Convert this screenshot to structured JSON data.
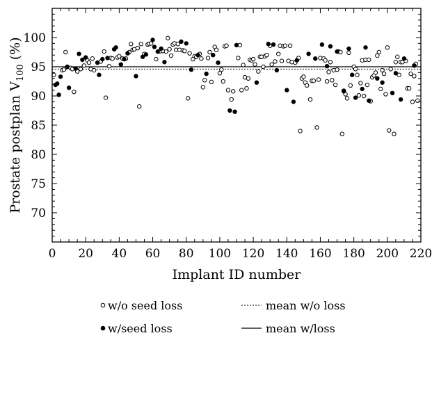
{
  "chart_data": {
    "type": "scatter",
    "xlabel": "Implant ID number",
    "ylabel": "Prostate postplan V",
    "ylabel_subscript": "100",
    "ylabel_suffix": " (%)",
    "xlim": [
      0,
      220
    ],
    "ylim": [
      65,
      105
    ],
    "xticks": [
      0,
      20,
      40,
      60,
      80,
      100,
      120,
      140,
      160,
      180,
      200,
      220
    ],
    "yticks": [
      70,
      75,
      80,
      85,
      90,
      95,
      100
    ],
    "grid": false,
    "legend_position": "bottom",
    "series": [
      {
        "name": "w/o seed loss",
        "marker": "open-circle",
        "points": [
          [
            1,
            93.6
          ],
          [
            6,
            94.4
          ],
          [
            7,
            94.5
          ],
          [
            8,
            97.5
          ],
          [
            11,
            94.8
          ],
          [
            12,
            94.6
          ],
          [
            13,
            90.7
          ],
          [
            15,
            94.2
          ],
          [
            17,
            94.6
          ],
          [
            19,
            95.2
          ],
          [
            21,
            96.1
          ],
          [
            22,
            95.7
          ],
          [
            23,
            94.6
          ],
          [
            24,
            96.4
          ],
          [
            25,
            94.4
          ],
          [
            29,
            95.9
          ],
          [
            31,
            97.6
          ],
          [
            32,
            89.7
          ],
          [
            34,
            95.1
          ],
          [
            35,
            96.5
          ],
          [
            36,
            96.4
          ],
          [
            39,
            96.6
          ],
          [
            40,
            96.8
          ],
          [
            42,
            96.4
          ],
          [
            44,
            96.4
          ],
          [
            46,
            97.5
          ],
          [
            47,
            98.9
          ],
          [
            48,
            97.9
          ],
          [
            49,
            98.0
          ],
          [
            51,
            98.2
          ],
          [
            52,
            88.2
          ],
          [
            53,
            98.9
          ],
          [
            55,
            97.2
          ],
          [
            57,
            98.8
          ],
          [
            58,
            98.9
          ],
          [
            59,
            99.0
          ],
          [
            62,
            96.3
          ],
          [
            64,
            97.6
          ],
          [
            66,
            97.7
          ],
          [
            68,
            97.6
          ],
          [
            69,
            99.9
          ],
          [
            70,
            98.0
          ],
          [
            71,
            96.9
          ],
          [
            72,
            98.8
          ],
          [
            73,
            99.0
          ],
          [
            74,
            97.9
          ],
          [
            75,
            98.9
          ],
          [
            76,
            97.9
          ],
          [
            78,
            97.8
          ],
          [
            79,
            97.7
          ],
          [
            81,
            89.6
          ],
          [
            82,
            97.3
          ],
          [
            84,
            96.3
          ],
          [
            85,
            96.8
          ],
          [
            86,
            96.7
          ],
          [
            88,
            97.2
          ],
          [
            89,
            96.4
          ],
          [
            90,
            91.5
          ],
          [
            91,
            92.7
          ],
          [
            93,
            96.5
          ],
          [
            94,
            97.5
          ],
          [
            95,
            92.4
          ],
          [
            97,
            98.4
          ],
          [
            98,
            97.9
          ],
          [
            100,
            93.9
          ],
          [
            101,
            94.5
          ],
          [
            102,
            92.5
          ],
          [
            103,
            98.5
          ],
          [
            104,
            98.6
          ],
          [
            105,
            91.0
          ],
          [
            107,
            89.4
          ],
          [
            108,
            90.8
          ],
          [
            111,
            96.5
          ],
          [
            112,
            98.7
          ],
          [
            113,
            91.0
          ],
          [
            114,
            95.3
          ],
          [
            115,
            93.2
          ],
          [
            116,
            91.3
          ],
          [
            117,
            93.0
          ],
          [
            118,
            96.2
          ],
          [
            119,
            96.1
          ],
          [
            120,
            96.3
          ],
          [
            121,
            95.4
          ],
          [
            123,
            94.2
          ],
          [
            124,
            96.7
          ],
          [
            125,
            96.7
          ],
          [
            126,
            95.0
          ],
          [
            127,
            96.8
          ],
          [
            128,
            97.0
          ],
          [
            130,
            98.6
          ],
          [
            131,
            95.4
          ],
          [
            133,
            95.9
          ],
          [
            135,
            97.2
          ],
          [
            136,
            98.6
          ],
          [
            137,
            96.0
          ],
          [
            138,
            98.5
          ],
          [
            139,
            98.6
          ],
          [
            141,
            96.0
          ],
          [
            142,
            98.6
          ],
          [
            143,
            95.8
          ],
          [
            145,
            95.7
          ],
          [
            147,
            96.5
          ],
          [
            148,
            84.0
          ],
          [
            149,
            93.0
          ],
          [
            150,
            93.3
          ],
          [
            151,
            92.3
          ],
          [
            152,
            91.8
          ],
          [
            154,
            89.4
          ],
          [
            155,
            92.6
          ],
          [
            156,
            92.6
          ],
          [
            158,
            84.6
          ],
          [
            159,
            92.8
          ],
          [
            160,
            96.5
          ],
          [
            162,
            96.4
          ],
          [
            163,
            96.1
          ],
          [
            164,
            92.5
          ],
          [
            165,
            94.1
          ],
          [
            166,
            95.8
          ],
          [
            167,
            92.7
          ],
          [
            168,
            94.4
          ],
          [
            169,
            91.9
          ],
          [
            170,
            94.5
          ],
          [
            171,
            97.6
          ],
          [
            172,
            97.5
          ],
          [
            173,
            83.5
          ],
          [
            174,
            90.9
          ],
          [
            175,
            90.3
          ],
          [
            176,
            89.6
          ],
          [
            177,
            97.4
          ],
          [
            178,
            91.8
          ],
          [
            180,
            95.0
          ],
          [
            181,
            94.6
          ],
          [
            182,
            93.6
          ],
          [
            183,
            90.1
          ],
          [
            184,
            92.2
          ],
          [
            185,
            96.1
          ],
          [
            186,
            90.0
          ],
          [
            187,
            96.2
          ],
          [
            188,
            91.9
          ],
          [
            189,
            96.2
          ],
          [
            190,
            89.1
          ],
          [
            191,
            93.2
          ],
          [
            192,
            93.5
          ],
          [
            193,
            94.0
          ],
          [
            194,
            96.9
          ],
          [
            195,
            97.5
          ],
          [
            196,
            91.2
          ],
          [
            197,
            94.4
          ],
          [
            198,
            93.8
          ],
          [
            199,
            90.3
          ],
          [
            200,
            98.3
          ],
          [
            201,
            84.1
          ],
          [
            202,
            94.6
          ],
          [
            204,
            83.5
          ],
          [
            205,
            95.8
          ],
          [
            206,
            96.7
          ],
          [
            207,
            93.6
          ],
          [
            208,
            95.8
          ],
          [
            209,
            95.8
          ],
          [
            211,
            96.0
          ],
          [
            212,
            91.3
          ],
          [
            213,
            91.3
          ],
          [
            214,
            93.8
          ],
          [
            215,
            89.0
          ],
          [
            216,
            93.4
          ],
          [
            217,
            95.5
          ],
          [
            218,
            89.2
          ]
        ]
      },
      {
        "name": "w/seed loss",
        "marker": "filled-circle",
        "points": [
          [
            2,
            91.9
          ],
          [
            3,
            92.1
          ],
          [
            4,
            90.2
          ],
          [
            5,
            93.3
          ],
          [
            9,
            95.0
          ],
          [
            10,
            91.4
          ],
          [
            14,
            94.7
          ],
          [
            16,
            97.2
          ],
          [
            18,
            96.2
          ],
          [
            20,
            96.6
          ],
          [
            27,
            95.7
          ],
          [
            28,
            93.6
          ],
          [
            30,
            96.3
          ],
          [
            33,
            96.5
          ],
          [
            37,
            98.0
          ],
          [
            38,
            98.3
          ],
          [
            41,
            95.4
          ],
          [
            43,
            96.3
          ],
          [
            45,
            97.3
          ],
          [
            50,
            93.4
          ],
          [
            54,
            96.7
          ],
          [
            56,
            97.1
          ],
          [
            60,
            99.6
          ],
          [
            61,
            98.4
          ],
          [
            63,
            97.6
          ],
          [
            65,
            98.1
          ],
          [
            67,
            95.8
          ],
          [
            77,
            99.3
          ],
          [
            80,
            99.0
          ],
          [
            83,
            94.5
          ],
          [
            87,
            97.0
          ],
          [
            92,
            93.8
          ],
          [
            96,
            97.0
          ],
          [
            99,
            95.7
          ],
          [
            106,
            87.5
          ],
          [
            109,
            87.3
          ],
          [
            110,
            98.7
          ],
          [
            122,
            92.3
          ],
          [
            129,
            98.9
          ],
          [
            132,
            98.8
          ],
          [
            134,
            94.4
          ],
          [
            140,
            91.0
          ],
          [
            144,
            89.0
          ],
          [
            146,
            96.1
          ],
          [
            153,
            97.2
          ],
          [
            157,
            96.4
          ],
          [
            161,
            98.8
          ],
          [
            164,
            95.1
          ],
          [
            166,
            98.5
          ],
          [
            170,
            97.6
          ],
          [
            174,
            90.8
          ],
          [
            177,
            98.1
          ],
          [
            179,
            93.6
          ],
          [
            181,
            89.7
          ],
          [
            185,
            91.2
          ],
          [
            187,
            98.3
          ],
          [
            189,
            89.2
          ],
          [
            194,
            93.0
          ],
          [
            197,
            92.3
          ],
          [
            203,
            90.5
          ],
          [
            205,
            93.9
          ],
          [
            208,
            89.4
          ],
          [
            210,
            96.4
          ],
          [
            216,
            95.2
          ]
        ]
      }
    ],
    "mean_lines": [
      {
        "name": "mean w/o loss",
        "style": "dotted",
        "y": 94.6
      },
      {
        "name": "mean w/loss",
        "style": "solid",
        "y": 95.0
      }
    ],
    "legend": [
      {
        "name": "w/o seed loss",
        "symbol": "○"
      },
      {
        "name": "mean w/o loss",
        "symbol": "dotted-line"
      },
      {
        "name": "w/seed loss",
        "symbol": "●"
      },
      {
        "name": "mean w/loss",
        "symbol": "solid-line"
      }
    ]
  }
}
